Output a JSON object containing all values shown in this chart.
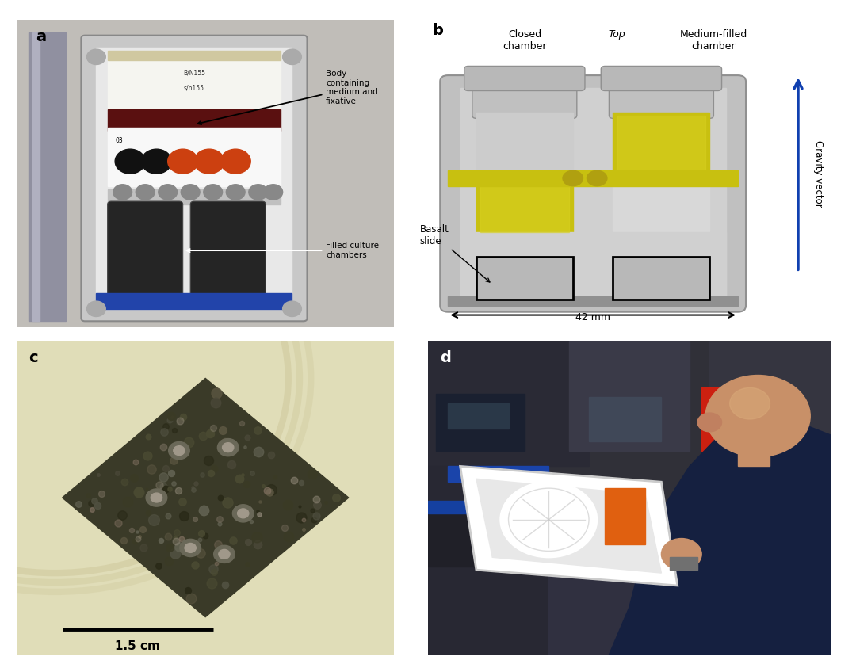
{
  "fig_width": 10.8,
  "fig_height": 8.43,
  "bg_color": "#ffffff",
  "panel_labels": [
    "a",
    "b",
    "c",
    "d"
  ],
  "panel_label_fontsize": 14,
  "panel_label_weight": "bold",
  "panel_b": {
    "closed_chamber_label": "Closed\nchamber",
    "top_label": "Top",
    "medium_filled_label": "Medium-filled\nchamber",
    "gravity_label": "Gravity vector",
    "dimension_label": "42 mm",
    "annotation_label": "Basalt\nslide",
    "gray_outer": "#b8b8b8",
    "gray_mid": "#c8c8c8",
    "gray_light": "#d8d8d8",
    "gray_lighter": "#e0e0e0",
    "yellow": "#c8c010",
    "yellow_inner": "#d8d020",
    "gravity_blue": "#1040b0",
    "basalt_gray": "#b0b0b0"
  },
  "annotations_a": {
    "body_text": "Body\ncontaining\nmedium and\nfixative",
    "chamber_text": "Filled culture\nchambers"
  },
  "annotation_c": {
    "scale_text": "1.5 cm"
  }
}
